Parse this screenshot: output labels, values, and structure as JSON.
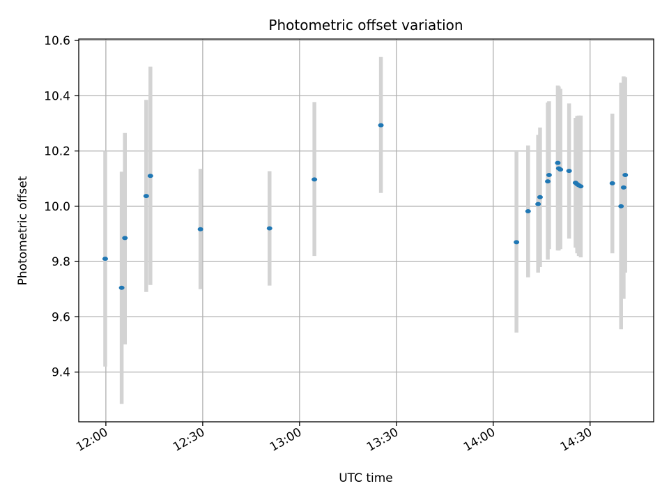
{
  "chart_data": {
    "type": "scatter",
    "title": "Photometric offset variation",
    "xlabel": "UTC time",
    "ylabel": "Photometric offset",
    "xlim": [
      "11:51.6",
      "14:49.7"
    ],
    "ylim": [
      9.22,
      10.605
    ],
    "grid": true,
    "x_ticks": [
      "12:00",
      "12:30",
      "13:00",
      "13:30",
      "14:00",
      "14:30"
    ],
    "y_ticks": [
      "9.4",
      "9.6",
      "9.8",
      "10.0",
      "10.2",
      "10.4",
      "10.6"
    ],
    "colors": {
      "marker": "#1f77b4",
      "errorbar": "#d3d3d3",
      "grid": "#b0b0b0"
    },
    "series": [
      {
        "points": [
          {
            "x": "11:59.8",
            "y": 9.81,
            "low": 9.42,
            "high": 10.2
          },
          {
            "x": "12:04.9",
            "y": 9.705,
            "low": 9.285,
            "high": 10.125
          },
          {
            "x": "12:05.9",
            "y": 9.885,
            "low": 9.5,
            "high": 10.265
          },
          {
            "x": "12:12.5",
            "y": 10.037,
            "low": 9.69,
            "high": 10.385
          },
          {
            "x": "12:13.8",
            "y": 10.11,
            "low": 9.715,
            "high": 10.505
          },
          {
            "x": "12:29.3",
            "y": 9.917,
            "low": 9.7,
            "high": 10.135
          },
          {
            "x": "12:50.7",
            "y": 9.92,
            "low": 9.713,
            "high": 10.127
          },
          {
            "x": "13:04.6",
            "y": 10.097,
            "low": 9.82,
            "high": 10.377
          },
          {
            "x": "13:25.2",
            "y": 10.293,
            "low": 10.048,
            "high": 10.54
          },
          {
            "x": "14:07.2",
            "y": 9.87,
            "low": 9.543,
            "high": 10.197
          },
          {
            "x": "14:10.8",
            "y": 9.982,
            "low": 9.743,
            "high": 10.22
          },
          {
            "x": "14:13.9",
            "y": 10.008,
            "low": 9.76,
            "high": 10.258
          },
          {
            "x": "14:14.5",
            "y": 10.033,
            "low": 9.78,
            "high": 10.285
          },
          {
            "x": "14:16.9",
            "y": 10.09,
            "low": 9.807,
            "high": 10.375
          },
          {
            "x": "14:17.3",
            "y": 10.113,
            "low": 9.845,
            "high": 10.38
          },
          {
            "x": "14:20.0",
            "y": 10.157,
            "low": 9.84,
            "high": 10.437
          },
          {
            "x": "14:20.3",
            "y": 10.137,
            "low": 9.84,
            "high": 10.433
          },
          {
            "x": "14:20.8",
            "y": 10.133,
            "low": 9.845,
            "high": 10.425
          },
          {
            "x": "14:23.5",
            "y": 10.128,
            "low": 9.883,
            "high": 10.372
          },
          {
            "x": "14:25.5",
            "y": 10.085,
            "low": 9.85,
            "high": 10.32
          },
          {
            "x": "14:26.0",
            "y": 10.08,
            "low": 9.83,
            "high": 10.327
          },
          {
            "x": "14:26.5",
            "y": 10.076,
            "low": 9.82,
            "high": 10.328
          },
          {
            "x": "14:27.1",
            "y": 10.072,
            "low": 9.815,
            "high": 10.328
          },
          {
            "x": "14:36.9",
            "y": 10.083,
            "low": 9.83,
            "high": 10.335
          },
          {
            "x": "14:39.6",
            "y": 10.0,
            "low": 9.555,
            "high": 10.447
          },
          {
            "x": "14:40.4",
            "y": 10.068,
            "low": 9.665,
            "high": 10.47
          },
          {
            "x": "14:40.9",
            "y": 10.113,
            "low": 9.76,
            "high": 10.467
          }
        ]
      }
    ]
  }
}
